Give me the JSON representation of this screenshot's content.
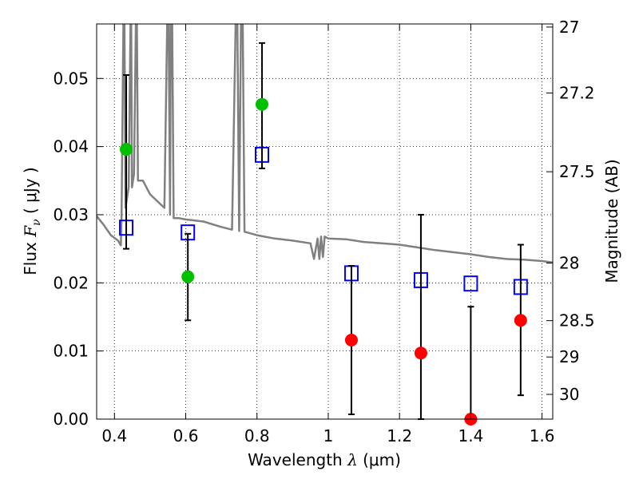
{
  "chart_data": {
    "type": "scatter",
    "xlabel": {
      "prefix": "Wavelength  ",
      "symbol": "λ",
      "suffix": " (μm)"
    },
    "ylabel": {
      "prefix": "Flux  ",
      "symbol": "F",
      "subscript": "ν",
      "suffix": "  ( μJy )"
    },
    "y2label": "Magnitude (AB)",
    "xlim": [
      0.35,
      1.63
    ],
    "ylim": [
      0.0,
      0.058
    ],
    "grid": true,
    "x_ticks": [
      {
        "value": 0.4,
        "label": "0.4"
      },
      {
        "value": 0.6,
        "label": "0.6"
      },
      {
        "value": 0.8,
        "label": "0.8"
      },
      {
        "value": 1.0,
        "label": "1"
      },
      {
        "value": 1.2,
        "label": "1.2"
      },
      {
        "value": 1.4,
        "label": "1.4"
      },
      {
        "value": 1.6,
        "label": "1.6"
      }
    ],
    "y_ticks": [
      {
        "value": 0.0,
        "label": "0.00"
      },
      {
        "value": 0.01,
        "label": "0.01"
      },
      {
        "value": 0.02,
        "label": "0.02"
      },
      {
        "value": 0.03,
        "label": "0.03"
      },
      {
        "value": 0.04,
        "label": "0.04"
      },
      {
        "value": 0.05,
        "label": "0.05"
      }
    ],
    "magnitude_ticks": [
      {
        "mag": 27,
        "label": "27"
      },
      {
        "mag": 27.2,
        "label": "27.2"
      },
      {
        "mag": 27.5,
        "label": "27.5"
      },
      {
        "mag": 28,
        "label": "28"
      },
      {
        "mag": 28.5,
        "label": "28.5"
      },
      {
        "mag": 29,
        "label": "29"
      },
      {
        "mag": 30,
        "label": "30"
      }
    ],
    "series": [
      {
        "kind": "model_sed",
        "color": "#808080",
        "points": [
          [
            0.35,
            0.0298
          ],
          [
            0.37,
            0.0285
          ],
          [
            0.39,
            0.027
          ],
          [
            0.41,
            0.0262
          ],
          [
            0.418,
            0.0255
          ],
          [
            0.42,
            0.03
          ],
          [
            0.425,
            0.058
          ],
          [
            0.428,
            0.058
          ],
          [
            0.431,
            0.031
          ],
          [
            0.44,
            0.034
          ],
          [
            0.445,
            0.058
          ],
          [
            0.447,
            0.058
          ],
          [
            0.449,
            0.034
          ],
          [
            0.455,
            0.036
          ],
          [
            0.46,
            0.058
          ],
          [
            0.463,
            0.058
          ],
          [
            0.466,
            0.035
          ],
          [
            0.48,
            0.035
          ],
          [
            0.5,
            0.033
          ],
          [
            0.52,
            0.032
          ],
          [
            0.54,
            0.031
          ],
          [
            0.548,
            0.058
          ],
          [
            0.552,
            0.058
          ],
          [
            0.556,
            0.03
          ],
          [
            0.558,
            0.058
          ],
          [
            0.562,
            0.058
          ],
          [
            0.566,
            0.0295
          ],
          [
            0.58,
            0.0295
          ],
          [
            0.6,
            0.0293
          ],
          [
            0.65,
            0.029
          ],
          [
            0.7,
            0.0282
          ],
          [
            0.73,
            0.0278
          ],
          [
            0.74,
            0.058
          ],
          [
            0.745,
            0.058
          ],
          [
            0.75,
            0.0276
          ],
          [
            0.755,
            0.058
          ],
          [
            0.76,
            0.058
          ],
          [
            0.765,
            0.0275
          ],
          [
            0.8,
            0.027
          ],
          [
            0.85,
            0.0265
          ],
          [
            0.9,
            0.0262
          ],
          [
            0.95,
            0.0258
          ],
          [
            0.96,
            0.0235
          ],
          [
            0.97,
            0.0265
          ],
          [
            0.975,
            0.0235
          ],
          [
            0.98,
            0.0268
          ],
          [
            0.985,
            0.0238
          ],
          [
            0.99,
            0.0268
          ],
          [
            1.0,
            0.0265
          ],
          [
            1.05,
            0.0264
          ],
          [
            1.1,
            0.026
          ],
          [
            1.15,
            0.0258
          ],
          [
            1.2,
            0.0256
          ],
          [
            1.25,
            0.0252
          ],
          [
            1.3,
            0.0248
          ],
          [
            1.35,
            0.0245
          ],
          [
            1.4,
            0.0242
          ],
          [
            1.45,
            0.0238
          ],
          [
            1.5,
            0.0235
          ],
          [
            1.55,
            0.0234
          ],
          [
            1.6,
            0.0232
          ],
          [
            1.63,
            0.023
          ]
        ]
      },
      {
        "kind": "model_photometry",
        "marker": "open-square",
        "color": "#0000ff",
        "points": [
          [
            0.433,
            0.0281
          ],
          [
            0.606,
            0.0274
          ],
          [
            0.814,
            0.0388
          ],
          [
            1.065,
            0.0214
          ],
          [
            1.26,
            0.0204
          ],
          [
            1.4,
            0.0199
          ],
          [
            1.54,
            0.0194
          ]
        ]
      },
      {
        "kind": "detections",
        "marker": "filled-circle",
        "color": "#00c000",
        "points": [
          {
            "x": 0.433,
            "y": 0.0396,
            "yerr_low": 0.025,
            "yerr_high": 0.0505
          },
          {
            "x": 0.606,
            "y": 0.0209,
            "yerr_low": 0.0145,
            "yerr_high": 0.0272
          },
          {
            "x": 0.814,
            "y": 0.0462,
            "yerr_low": 0.0368,
            "yerr_high": 0.0552
          }
        ]
      },
      {
        "kind": "non_detections",
        "marker": "filled-circle",
        "color": "#ff0000",
        "points": [
          {
            "x": 1.065,
            "y": 0.0116,
            "yerr_low": 0.0007,
            "yerr_high": 0.0225
          },
          {
            "x": 1.26,
            "y": 0.0097,
            "yerr_low": 0.0,
            "yerr_high": 0.03
          },
          {
            "x": 1.4,
            "y": 0.0,
            "yerr_low": 0.0,
            "yerr_high": 0.0165
          },
          {
            "x": 1.54,
            "y": 0.0145,
            "yerr_low": 0.0035,
            "yerr_high": 0.0256
          }
        ]
      }
    ]
  }
}
